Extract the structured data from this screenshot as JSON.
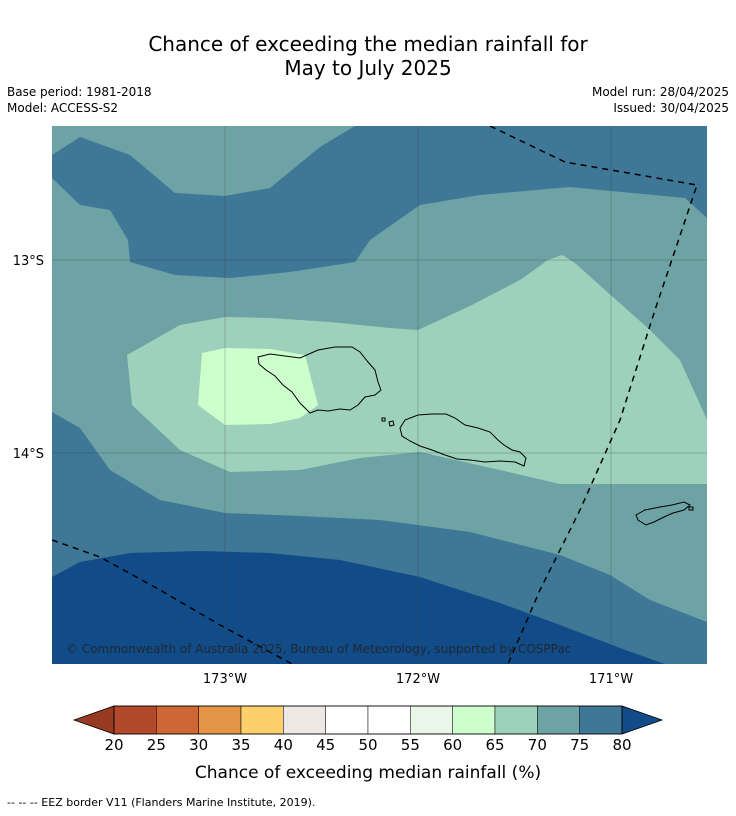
{
  "title": {
    "line1": "Chance of exceeding the median rainfall for",
    "line2": "May to July 2025"
  },
  "meta_left": {
    "base_period": "Base period: 1981-2018",
    "model": "Model: ACCESS-S2"
  },
  "meta_right": {
    "model_run": "Model run: 28/04/2025",
    "issued": "Issued: 30/04/2025"
  },
  "map": {
    "lat_labels": [
      "13°S",
      "14°S"
    ],
    "lon_labels": [
      "173°W",
      "172°W",
      "171°W"
    ],
    "copyright": "© Commonwealth of Australia 2025, Bureau of Meteorology, supported by COSPPac",
    "colors": {
      "c60_65": "#ccffcc",
      "c65_70": "#9ed1bb",
      "c70_75": "#6da3a5",
      "c75_80": "#3f7797",
      "c80": "#124c88"
    }
  },
  "colorbar": {
    "ticks": [
      "20",
      "25",
      "30",
      "35",
      "40",
      "45",
      "50",
      "55",
      "60",
      "65",
      "70",
      "75",
      "80"
    ],
    "colors": [
      "#b2492a",
      "#cf6636",
      "#e39447",
      "#fdcf6d",
      "#ede8e4",
      "#ffffff",
      "#ffffff",
      "#e9f6e9",
      "#ccffcc",
      "#9ed1bb",
      "#6da3a5",
      "#3f7797"
    ],
    "low_color": "#983a22",
    "high_color": "#124c88",
    "label": "Chance of exceeding median rainfall (%)"
  },
  "footer": "--  --  -- EEZ border V11 (Flanders Marine Institute, 2019)."
}
